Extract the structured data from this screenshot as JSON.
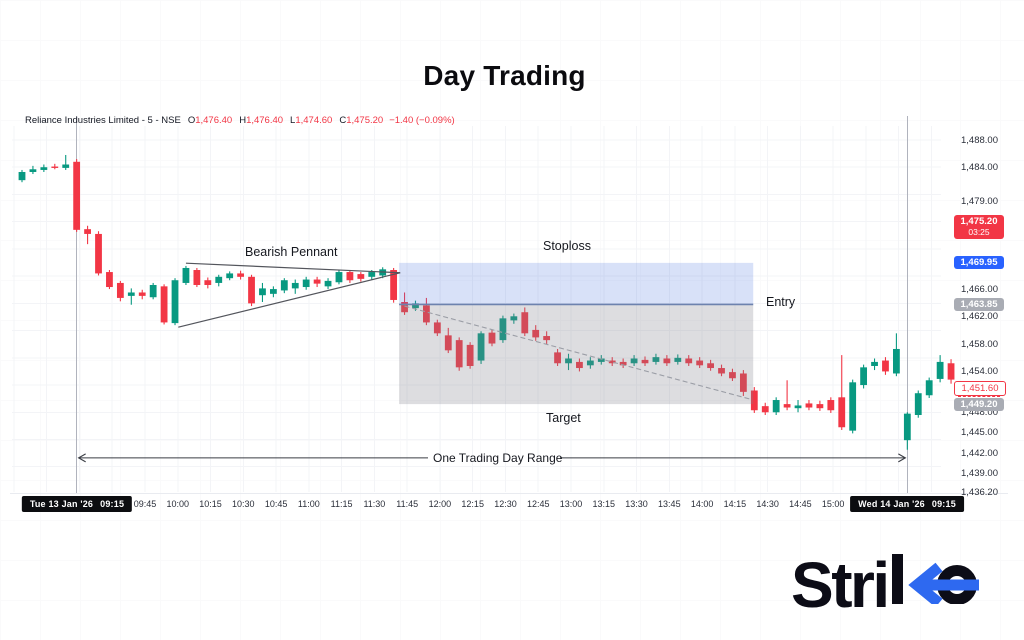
{
  "page": {
    "title": "Day Trading"
  },
  "symbol_info": {
    "name": "Reliance Industries Limited",
    "sep": " - ",
    "interval": "5",
    "exchange": "NSE",
    "ohlc": [
      {
        "label": "O",
        "value": "1,476.40"
      },
      {
        "label": "H",
        "value": "1,476.40"
      },
      {
        "label": "L",
        "value": "1,474.60"
      },
      {
        "label": "C",
        "value": "1,475.20"
      }
    ],
    "change": "−1.40 (−0.09%)"
  },
  "annotations": {
    "pattern": "Bearish Pennant",
    "stoploss": "Stoploss",
    "entry": "Entry",
    "target": "Target",
    "day_range": "One Trading Day Range"
  },
  "price_axis": {
    "ticks": [
      {
        "label": "1,488.00",
        "price": 1488.0
      },
      {
        "label": "1,484.00",
        "price": 1484.0
      },
      {
        "label": "1,479.00",
        "price": 1479.0
      },
      {
        "label": "1,466.00",
        "price": 1466.0
      },
      {
        "label": "1,462.00",
        "price": 1462.0
      },
      {
        "label": "1,458.00",
        "price": 1458.0
      },
      {
        "label": "1,454.00",
        "price": 1454.0
      },
      {
        "label": "1,448.00",
        "price": 1448.0
      },
      {
        "label": "1,445.00",
        "price": 1445.0
      },
      {
        "label": "1,442.00",
        "price": 1442.0
      },
      {
        "label": "1,439.00",
        "price": 1439.0
      },
      {
        "label": "1,436.20",
        "price": 1436.2
      }
    ],
    "badges": [
      {
        "label": "1,475.20",
        "sub": "03:25",
        "price": 1475.2,
        "style": "red"
      },
      {
        "label": "1,469.95",
        "price": 1469.95,
        "style": "blue"
      },
      {
        "label": "1,463.85",
        "price": 1463.85,
        "style": "gray"
      },
      {
        "label": "1,451.60",
        "price": 1451.6,
        "style": "red-outline"
      },
      {
        "label": "1,449.20",
        "price": 1449.2,
        "style": "gray"
      }
    ]
  },
  "time_axis": {
    "labels": [
      "09:45",
      "10:00",
      "10:15",
      "10:30",
      "10:45",
      "11:00",
      "11:15",
      "11:30",
      "11:45",
      "12:00",
      "12:15",
      "12:30",
      "12:45",
      "13:00",
      "13:15",
      "13:30",
      "13:45",
      "14:00",
      "14:15",
      "14:30",
      "14:45",
      "15:00"
    ],
    "session_badges": [
      {
        "date": "Tue 13 Jan '26",
        "time": "09:15"
      },
      {
        "date": "Wed 14 Jan '26",
        "time": "09:15"
      }
    ]
  },
  "brand": {
    "name": "Strike",
    "wordmark_prefix": "Stri",
    "accent": "#2e69f0"
  },
  "colors": {
    "candle_up": "#089981",
    "candle_down": "#f23645",
    "badge_red": "#f23645",
    "badge_blue": "#2962ff",
    "badge_gray": "#a9acb4",
    "zone_stop_fill": "rgba(77,118,224,0.22)",
    "zone_target_fill": "rgba(128,131,142,0.27)",
    "entry_line": "#6d82ae",
    "pennant_line": "#53555c",
    "dashed_trend": "#9b9ea6",
    "session_line": "#b0b3bd",
    "arrow_line": "#3a3d44",
    "grid": "#f3f4f7"
  },
  "chart_data": {
    "type": "candlestick",
    "title": "Day Trading",
    "symbol": "Reliance Industries Limited",
    "interval": "5",
    "exchange": "NSE",
    "price_range": [
      1436.2,
      1488.0
    ],
    "grid": true,
    "ohlc_last": {
      "open": 1476.4,
      "high": 1476.4,
      "low": 1474.6,
      "close": 1475.2,
      "change": -1.4,
      "change_pct": -0.09
    },
    "levels": {
      "stoploss": 1469.95,
      "entry": 1463.85,
      "target": 1449.2,
      "last_price": 1475.2,
      "marked_price": 1451.6
    },
    "candles": [
      [
        1482.1,
        1483.6,
        1481.8,
        1483.3
      ],
      [
        1483.3,
        1484.2,
        1483.0,
        1483.7
      ],
      [
        1483.6,
        1484.4,
        1483.3,
        1484.0
      ],
      [
        1484.1,
        1484.5,
        1483.7,
        1483.9
      ],
      [
        1483.9,
        1485.8,
        1483.6,
        1484.4
      ],
      [
        1484.8,
        1485.2,
        1474.5,
        1474.8
      ],
      [
        1474.9,
        1475.4,
        1472.7,
        1474.2
      ],
      [
        1474.2,
        1474.6,
        1468.1,
        1468.4
      ],
      [
        1468.6,
        1468.9,
        1466.1,
        1466.4
      ],
      [
        1467.0,
        1467.3,
        1464.3,
        1464.8
      ],
      [
        1465.1,
        1466.2,
        1463.8,
        1465.6
      ],
      [
        1465.6,
        1466.0,
        1464.6,
        1465.1
      ],
      [
        1464.9,
        1467.0,
        1464.6,
        1466.7
      ],
      [
        1466.5,
        1466.8,
        1460.9,
        1461.2
      ],
      [
        1461.1,
        1467.7,
        1460.8,
        1467.4
      ],
      [
        1467.0,
        1469.5,
        1466.7,
        1469.2
      ],
      [
        1468.9,
        1469.2,
        1466.4,
        1466.7
      ],
      [
        1467.4,
        1467.8,
        1466.2,
        1466.7
      ],
      [
        1467.0,
        1468.2,
        1466.5,
        1467.9
      ],
      [
        1467.7,
        1468.7,
        1467.4,
        1468.4
      ],
      [
        1468.4,
        1468.8,
        1467.5,
        1467.9
      ],
      [
        1467.9,
        1468.2,
        1463.6,
        1464.0
      ],
      [
        1465.2,
        1467.0,
        1464.2,
        1466.2
      ],
      [
        1465.4,
        1466.5,
        1464.9,
        1466.1
      ],
      [
        1465.9,
        1467.7,
        1465.5,
        1467.4
      ],
      [
        1466.2,
        1467.5,
        1465.4,
        1467.0
      ],
      [
        1466.4,
        1467.9,
        1466.0,
        1467.5
      ],
      [
        1467.5,
        1467.9,
        1466.4,
        1466.9
      ],
      [
        1466.5,
        1467.7,
        1466.1,
        1467.3
      ],
      [
        1467.1,
        1468.9,
        1466.8,
        1468.6
      ],
      [
        1468.6,
        1468.9,
        1467.0,
        1467.4
      ],
      [
        1468.3,
        1468.6,
        1467.2,
        1467.6
      ],
      [
        1467.9,
        1468.9,
        1467.5,
        1468.6
      ],
      [
        1468.1,
        1469.3,
        1467.7,
        1469.0
      ],
      [
        1468.9,
        1469.2,
        1464.1,
        1464.5
      ],
      [
        1464.2,
        1465.6,
        1462.3,
        1462.7
      ],
      [
        1463.3,
        1464.4,
        1462.9,
        1464.0
      ],
      [
        1463.7,
        1464.8,
        1460.8,
        1461.2
      ],
      [
        1461.2,
        1461.6,
        1459.2,
        1459.6
      ],
      [
        1459.3,
        1460.4,
        1456.7,
        1457.1
      ],
      [
        1458.6,
        1459.0,
        1454.1,
        1454.6
      ],
      [
        1457.9,
        1458.3,
        1454.4,
        1454.8
      ],
      [
        1455.6,
        1459.9,
        1455.1,
        1459.6
      ],
      [
        1459.7,
        1460.1,
        1457.7,
        1458.1
      ],
      [
        1458.6,
        1462.2,
        1458.2,
        1461.8
      ],
      [
        1461.5,
        1462.5,
        1461.0,
        1462.1
      ],
      [
        1462.7,
        1463.4,
        1459.2,
        1459.6
      ],
      [
        1460.1,
        1460.8,
        1458.5,
        1459.0
      ],
      [
        1459.2,
        1459.9,
        1458.0,
        1458.6
      ],
      [
        1456.8,
        1457.3,
        1454.8,
        1455.2
      ],
      [
        1455.2,
        1456.6,
        1454.2,
        1455.9
      ],
      [
        1455.4,
        1455.9,
        1454.0,
        1454.5
      ],
      [
        1454.9,
        1456.1,
        1454.4,
        1455.6
      ],
      [
        1455.4,
        1456.4,
        1455.0,
        1455.9
      ],
      [
        1455.6,
        1456.1,
        1454.8,
        1455.2
      ],
      [
        1455.4,
        1455.9,
        1454.5,
        1454.9
      ],
      [
        1455.2,
        1456.4,
        1454.8,
        1455.9
      ],
      [
        1455.7,
        1456.2,
        1454.8,
        1455.2
      ],
      [
        1455.4,
        1456.6,
        1455.0,
        1456.1
      ],
      [
        1455.9,
        1456.4,
        1454.8,
        1455.2
      ],
      [
        1455.4,
        1456.5,
        1455.0,
        1456.0
      ],
      [
        1455.9,
        1456.4,
        1454.8,
        1455.2
      ],
      [
        1455.6,
        1456.1,
        1454.5,
        1454.9
      ],
      [
        1455.2,
        1455.7,
        1454.1,
        1454.5
      ],
      [
        1454.5,
        1455.0,
        1453.3,
        1453.7
      ],
      [
        1453.9,
        1454.4,
        1452.6,
        1453.0
      ],
      [
        1453.7,
        1454.2,
        1450.4,
        1451.0
      ],
      [
        1451.2,
        1451.7,
        1447.9,
        1448.3
      ],
      [
        1448.9,
        1449.4,
        1447.6,
        1448.0
      ],
      [
        1448.0,
        1450.2,
        1447.6,
        1449.8
      ],
      [
        1449.2,
        1452.7,
        1448.3,
        1448.7
      ],
      [
        1448.6,
        1449.8,
        1448.0,
        1449.0
      ],
      [
        1449.3,
        1449.8,
        1448.3,
        1448.7
      ],
      [
        1449.2,
        1449.7,
        1448.2,
        1448.6
      ],
      [
        1449.8,
        1450.2,
        1447.9,
        1448.3
      ],
      [
        1450.2,
        1456.4,
        1445.4,
        1445.8
      ],
      [
        1445.3,
        1452.8,
        1444.9,
        1452.4
      ],
      [
        1452.0,
        1455.0,
        1451.5,
        1454.6
      ],
      [
        1454.8,
        1455.9,
        1454.2,
        1455.4
      ],
      [
        1455.6,
        1456.1,
        1453.5,
        1454.0
      ],
      [
        1453.7,
        1459.6,
        1453.3,
        1457.3
      ],
      [
        1443.9,
        1448.0,
        1442.5,
        1447.8
      ],
      [
        1447.6,
        1451.2,
        1447.2,
        1450.8
      ],
      [
        1450.5,
        1453.1,
        1450.1,
        1452.7
      ],
      [
        1452.9,
        1456.4,
        1452.4,
        1455.4
      ],
      [
        1455.2,
        1455.8,
        1452.2,
        1452.8
      ]
    ],
    "trade_zone": {
      "start_idx": 34.5,
      "end_idx": 66.9,
      "stop_price": 1469.95,
      "entry_price": 1463.85,
      "target_price": 1449.2
    },
    "pennant": {
      "upper": [
        [
          15.0,
          1469.9
        ],
        [
          34.6,
          1468.5
        ]
      ],
      "lower": [
        [
          14.3,
          1460.5
        ],
        [
          34.6,
          1468.5
        ]
      ]
    },
    "trend_dash": [
      [
        35.0,
        1463.6
      ],
      [
        66.7,
        1449.9
      ]
    ],
    "sessions": [
      {
        "label": "Tue 13 Jan '26 09:15",
        "candle_index": 5
      },
      {
        "label": "Wed 14 Jan '26 09:15",
        "candle_index": 81
      }
    ],
    "day_range": {
      "price": 1441.3,
      "from_idx": 5,
      "to_idx": 81
    }
  }
}
